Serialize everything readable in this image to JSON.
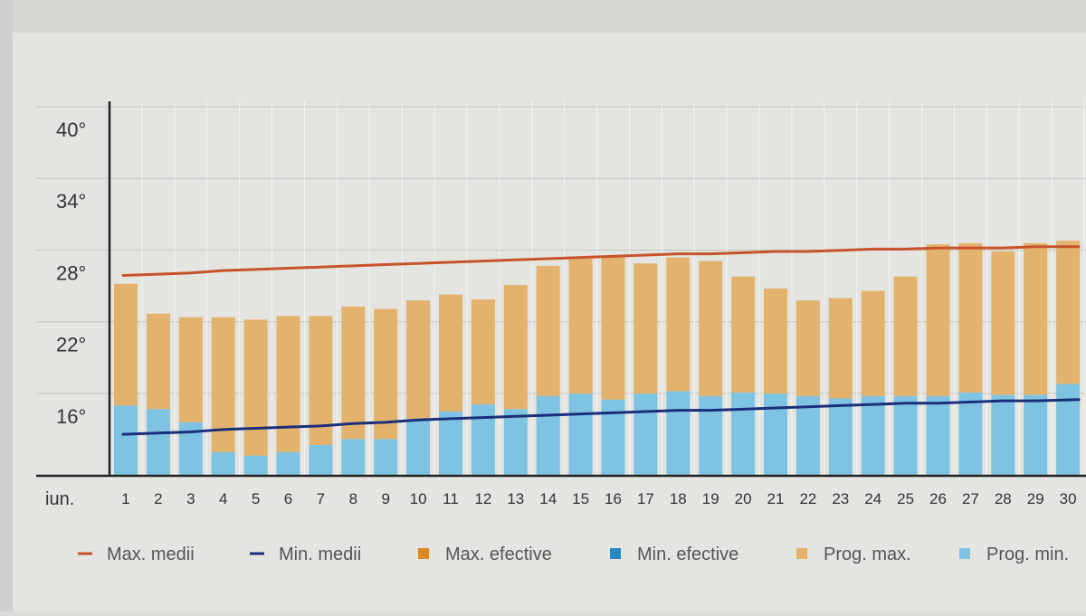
{
  "colors": {
    "max_medii": "#c8522a",
    "min_medii": "#1a2e7a",
    "max_efective": "#d98a28",
    "min_efective": "#2a88c0",
    "prog_max": "#e3b36e",
    "prog_min": "#7ec3e2",
    "grid": "#c9c9c6",
    "axis": "#222222",
    "background": "#e4e4e1"
  },
  "chart_data": {
    "type": "bar",
    "title": "",
    "xlabel": "iun.",
    "ylabel": "",
    "ylim": [
      11,
      42
    ],
    "yticks": [
      16,
      22,
      28,
      34,
      40
    ],
    "ytick_labels": [
      "16°",
      "22°",
      "28°",
      "34°",
      "40°"
    ],
    "grid": true,
    "legend_position": "bottom",
    "categories": [
      "1",
      "2",
      "3",
      "4",
      "5",
      "6",
      "7",
      "8",
      "9",
      "10",
      "11",
      "12",
      "13",
      "14",
      "15",
      "16",
      "17",
      "18",
      "19",
      "20",
      "21",
      "22",
      "23",
      "24",
      "25",
      "26",
      "27",
      "28",
      "29",
      "30"
    ],
    "series": [
      {
        "name": "Prog. max.",
        "kind": "bar-top",
        "values": [
          27.0,
          24.5,
          24.2,
          24.2,
          24.0,
          24.3,
          24.3,
          25.1,
          24.9,
          25.6,
          26.1,
          25.7,
          26.9,
          28.5,
          29.1,
          29.2,
          28.7,
          29.2,
          28.9,
          27.6,
          26.6,
          25.6,
          25.8,
          26.4,
          27.6,
          30.3,
          30.4,
          29.7,
          30.4,
          30.6
        ]
      },
      {
        "name": "Prog. min.",
        "kind": "bar-bottom",
        "values": [
          16.8,
          16.5,
          15.4,
          12.9,
          12.6,
          12.9,
          13.5,
          14.0,
          14.0,
          15.7,
          16.3,
          16.9,
          16.5,
          17.6,
          17.8,
          17.3,
          17.8,
          18.0,
          17.6,
          17.9,
          17.8,
          17.6,
          17.4,
          17.6,
          17.6,
          17.6,
          17.9,
          17.7,
          17.7,
          18.6
        ]
      },
      {
        "name": "Max. medii",
        "kind": "line",
        "values": [
          27.7,
          27.8,
          27.9,
          28.1,
          28.2,
          28.3,
          28.4,
          28.5,
          28.6,
          28.7,
          28.8,
          28.9,
          29.0,
          29.1,
          29.2,
          29.3,
          29.4,
          29.5,
          29.5,
          29.6,
          29.7,
          29.7,
          29.8,
          29.9,
          29.9,
          30.0,
          30.0,
          30.0,
          30.1,
          30.1
        ]
      },
      {
        "name": "Min. medii",
        "kind": "line",
        "values": [
          14.4,
          14.5,
          14.6,
          14.8,
          14.9,
          15.0,
          15.1,
          15.3,
          15.4,
          15.6,
          15.7,
          15.8,
          15.9,
          16.0,
          16.1,
          16.2,
          16.3,
          16.4,
          16.4,
          16.5,
          16.6,
          16.7,
          16.8,
          16.9,
          17.0,
          17.0,
          17.1,
          17.2,
          17.2,
          17.3
        ]
      }
    ],
    "legend": [
      {
        "label": "Max. medii",
        "symbol": "dash",
        "color_key": "max_medii"
      },
      {
        "label": "Min. medii",
        "symbol": "dash",
        "color_key": "min_medii"
      },
      {
        "label": "Max. efective",
        "symbol": "square",
        "color_key": "max_efective"
      },
      {
        "label": "Min. efective",
        "symbol": "square",
        "color_key": "min_efective"
      },
      {
        "label": "Prog. max.",
        "symbol": "square",
        "color_key": "prog_max"
      },
      {
        "label": "Prog. min.",
        "symbol": "square",
        "color_key": "prog_min"
      }
    ]
  }
}
